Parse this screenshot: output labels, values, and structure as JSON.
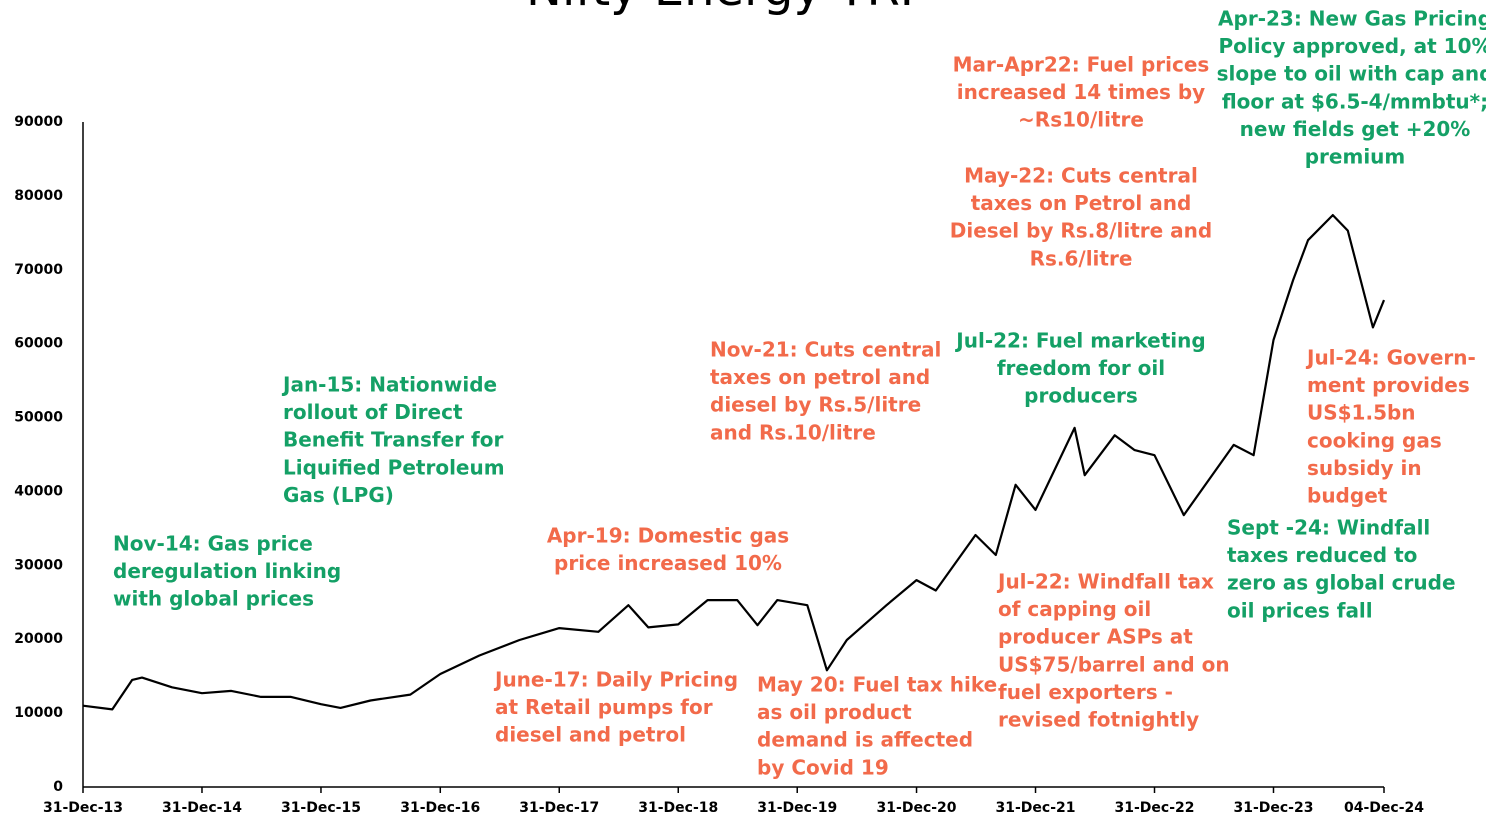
{
  "chart_data": {
    "type": "line",
    "title": "Nifty Energy TRI",
    "x": [
      "2013-12-31",
      "2014-03-31",
      "2014-05-31",
      "2014-06-30",
      "2014-09-30",
      "2014-12-31",
      "2015-03-31",
      "2015-06-30",
      "2015-09-30",
      "2015-12-31",
      "2016-02-29",
      "2016-05-31",
      "2016-09-30",
      "2016-12-31",
      "2017-04-30",
      "2017-08-31",
      "2017-12-31",
      "2018-04-30",
      "2018-07-31",
      "2018-09-30",
      "2018-12-31",
      "2019-03-31",
      "2019-06-30",
      "2019-08-31",
      "2019-10-31",
      "2020-01-31",
      "2020-03-31",
      "2020-05-31",
      "2020-09-30",
      "2020-12-31",
      "2021-02-28",
      "2021-06-30",
      "2021-08-31",
      "2021-10-31",
      "2021-12-31",
      "2022-04-30",
      "2022-05-31",
      "2022-08-31",
      "2022-10-31",
      "2022-12-31",
      "2023-03-31",
      "2023-08-31",
      "2023-10-31",
      "2023-12-31",
      "2024-02-29",
      "2024-04-15",
      "2024-06-30",
      "2024-08-15",
      "2024-10-31",
      "2024-12-04"
    ],
    "series": [
      {
        "name": "Nifty Energy TRI",
        "color": "#000000",
        "values": [
          11000,
          10500,
          14500,
          14800,
          13500,
          12700,
          13000,
          12200,
          12200,
          11200,
          10700,
          11700,
          12500,
          15300,
          17800,
          19900,
          21500,
          21000,
          24600,
          21600,
          22000,
          25300,
          25300,
          21900,
          25300,
          24600,
          15800,
          19900,
          24600,
          28000,
          26600,
          34100,
          31400,
          40900,
          37500,
          48600,
          42200,
          47600,
          45600,
          44900,
          36800,
          46300,
          44900,
          60500,
          68600,
          74000,
          77400,
          75300,
          62200,
          65900
        ]
      }
    ],
    "ylim": [
      0,
      90000
    ],
    "yticks": [
      0,
      10000,
      20000,
      30000,
      40000,
      50000,
      60000,
      70000,
      80000,
      90000
    ],
    "xlim": [
      "2013-12-31",
      "2024-12-04"
    ],
    "xticks": [
      {
        "value": "2013-12-31",
        "label": "31-Dec-13"
      },
      {
        "value": "2014-12-31",
        "label": "31-Dec-14"
      },
      {
        "value": "2015-12-31",
        "label": "31-Dec-15"
      },
      {
        "value": "2016-12-31",
        "label": "31-Dec-16"
      },
      {
        "value": "2017-12-31",
        "label": "31-Dec-17"
      },
      {
        "value": "2018-12-31",
        "label": "31-Dec-18"
      },
      {
        "value": "2019-12-31",
        "label": "31-Dec-19"
      },
      {
        "value": "2020-12-31",
        "label": "31-Dec-20"
      },
      {
        "value": "2021-12-31",
        "label": "31-Dec-21"
      },
      {
        "value": "2022-12-31",
        "label": "31-Dec-22"
      },
      {
        "value": "2023-12-31",
        "label": "31-Dec-23"
      },
      {
        "value": "2024-12-04",
        "label": "04-Dec-24"
      }
    ],
    "grid": false,
    "annotations": [
      {
        "color": "#14a066",
        "lines": [
          "Nov-14: Gas price",
          "deregulation linking",
          "with global prices"
        ]
      },
      {
        "color": "#14a066",
        "lines": [
          "Jan-15: Nationwide",
          "rollout of Direct",
          "Benefit Transfer  for",
          "Liquified Petroleum",
          "Gas (LPG)"
        ]
      },
      {
        "color": "#f26a4a",
        "lines": [
          "Apr-19: Domestic gas",
          "price increased 10%"
        ]
      },
      {
        "color": "#f26a4a",
        "lines": [
          "June-17: Daily Pricing",
          "at Retail pumps for",
          "diesel and petrol"
        ]
      },
      {
        "color": "#f26a4a",
        "lines": [
          "Nov-21: Cuts central",
          "taxes on petrol and",
          "diesel by Rs.5/litre",
          "and Rs.10/litre"
        ]
      },
      {
        "color": "#f26a4a",
        "lines": [
          "May 20: Fuel tax hike",
          "as oil product",
          "demand is affected",
          "by Covid 19"
        ]
      },
      {
        "color": "#f26a4a",
        "lines": [
          "Mar-Apr22: Fuel prices",
          "increased 14 times by",
          "~Rs10/litre"
        ]
      },
      {
        "color": "#f26a4a",
        "lines": [
          "May-22: Cuts central",
          "taxes on Petrol and",
          "Diesel by Rs.8/litre and",
          "Rs.6/litre"
        ]
      },
      {
        "color": "#14a066",
        "lines": [
          "Jul-22: Fuel marketing",
          "freedom for oil",
          "producers"
        ]
      },
      {
        "color": "#f26a4a",
        "lines": [
          "Jul-22: Windfall tax",
          "of capping oil",
          "producer ASPs at",
          "US$75/barrel and on",
          "fuel exporters -",
          "revised fotnightly"
        ]
      },
      {
        "color": "#14a066",
        "lines": [
          "Apr-23: New Gas Pricing",
          "Policy approved, at 10%",
          "slope to oil with cap and",
          "floor at $6.5-4/mmbtu*;",
          "new fields get +20%",
          "premium"
        ]
      },
      {
        "color": "#f26a4a",
        "lines": [
          "Jul-24: Govern-",
          "ment provides",
          "US$1.5bn",
          "cooking gas",
          "subsidy in",
          "budget"
        ]
      },
      {
        "color": "#14a066",
        "lines": [
          "Sept -24: Windfall",
          "taxes reduced to",
          "zero as global crude",
          "oil prices fall"
        ]
      }
    ]
  }
}
